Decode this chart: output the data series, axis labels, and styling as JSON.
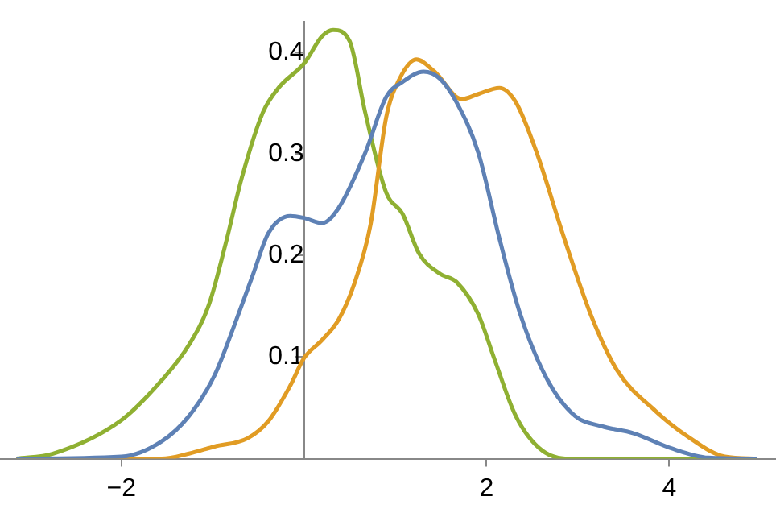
{
  "chart_data": {
    "type": "line",
    "xlim": [
      -3.33,
      5.17
    ],
    "ylim": [
      0,
      0.43
    ],
    "xticks": [
      -2,
      2,
      4
    ],
    "yticks": [
      0.1,
      0.2,
      0.3,
      0.4
    ],
    "grid": false,
    "legend": false,
    "marker": "none",
    "line_style": "solid",
    "series": [
      {
        "color": "#5e81b5",
        "x": [
          -3.15,
          -2.0,
          -1.56,
          -1.26,
          -0.98,
          -0.74,
          -0.56,
          -0.39,
          -0.15,
          0,
          0.2,
          0.38,
          0.67,
          0.9,
          1.08,
          1.31,
          1.49,
          1.67,
          1.91,
          2.14,
          2.37,
          2.67,
          2.97,
          3.26,
          3.61,
          4.03,
          4.43,
          4.96
        ],
        "values": [
          0,
          0.002,
          0.017,
          0.042,
          0.082,
          0.137,
          0.181,
          0.222,
          0.239,
          0.237,
          0.232,
          0.247,
          0.301,
          0.356,
          0.371,
          0.381,
          0.374,
          0.351,
          0.301,
          0.217,
          0.142,
          0.077,
          0.042,
          0.032,
          0.025,
          0.01,
          0.001,
          0
        ]
      },
      {
        "color": "#e19c24",
        "x": [
          -3.15,
          -2.0,
          -1.56,
          -1.26,
          -0.98,
          -0.62,
          -0.39,
          -0.15,
          0,
          0.2,
          0.38,
          0.55,
          0.73,
          0.9,
          1.03,
          1.23,
          1.43,
          1.73,
          1.91,
          2.14,
          2.32,
          2.55,
          2.85,
          3.14,
          3.43,
          3.85,
          4.2,
          4.61,
          4.96
        ],
        "values": [
          0,
          0,
          0,
          0.005,
          0.012,
          0.02,
          0.037,
          0.072,
          0.099,
          0.117,
          0.137,
          0.172,
          0.231,
          0.336,
          0.371,
          0.393,
          0.381,
          0.354,
          0.359,
          0.365,
          0.351,
          0.301,
          0.217,
          0.142,
          0.087,
          0.047,
          0.022,
          0.002,
          0
        ]
      },
      {
        "color": "#8fb032",
        "x": [
          -3.15,
          -2.75,
          -2.0,
          -1.56,
          -1.26,
          -1.04,
          -0.86,
          -0.68,
          -0.45,
          -0.27,
          0,
          0.2,
          0.32,
          0.5,
          0.67,
          0.9,
          1.08,
          1.26,
          1.49,
          1.67,
          1.91,
          2.09,
          2.32,
          2.61,
          2.96,
          4.96
        ],
        "values": [
          0,
          0.005,
          0.038,
          0.077,
          0.112,
          0.152,
          0.211,
          0.277,
          0.341,
          0.366,
          0.389,
          0.416,
          0.422,
          0.411,
          0.341,
          0.262,
          0.241,
          0.202,
          0.182,
          0.174,
          0.142,
          0.097,
          0.042,
          0.008,
          0,
          0
        ]
      }
    ]
  }
}
